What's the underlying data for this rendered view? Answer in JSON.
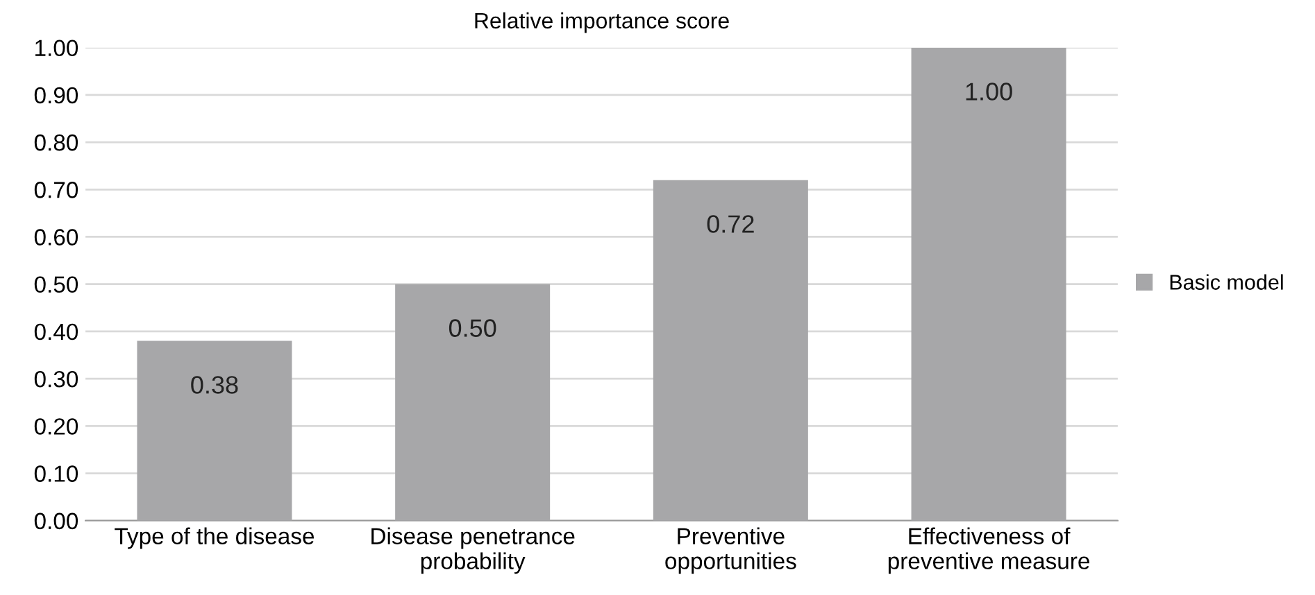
{
  "chart_data": {
    "type": "bar",
    "title": "Relative importance score",
    "categories": [
      "Type of the disease",
      "Disease penetrance\nprobability",
      "Preventive\nopportunities",
      "Effectiveness of\npreventive measure"
    ],
    "series": [
      {
        "name": "Basic model",
        "color": "#a7a7a9",
        "values": [
          0.38,
          0.5,
          0.72,
          1.0
        ],
        "value_labels": [
          "0.38",
          "0.50",
          "0.72",
          "1.00"
        ]
      }
    ],
    "ylim": [
      0,
      1.0
    ],
    "yticks": [
      {
        "value": 0,
        "label": "0.00"
      },
      {
        "value": 0.1,
        "label": "0.10"
      },
      {
        "value": 0.2,
        "label": "0.20"
      },
      {
        "value": 0.3,
        "label": "0.30"
      },
      {
        "value": 0.4,
        "label": "0.40"
      },
      {
        "value": 0.5,
        "label": "0.50"
      },
      {
        "value": 0.6,
        "label": "0.60"
      },
      {
        "value": 0.7,
        "label": "0.70"
      },
      {
        "value": 0.8,
        "label": "0.80"
      },
      {
        "value": 0.9,
        "label": "0.90"
      },
      {
        "value": 1.0,
        "label": "1.00"
      }
    ],
    "grid": "y",
    "legend": "right"
  }
}
